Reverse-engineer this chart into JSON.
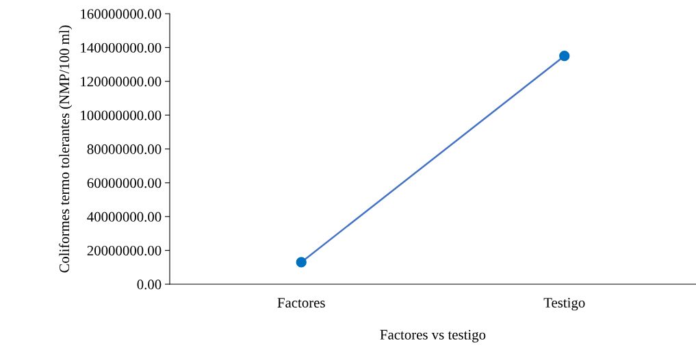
{
  "chart_data": {
    "type": "line",
    "xlabel": "Factores vs testigo",
    "ylabel": "Coliformes termo tolerantes (NMP/100 ml)",
    "categories": [
      "Factores",
      "Testigo"
    ],
    "series": [
      {
        "color": "#4472c4",
        "values": [
          13000000,
          135000000
        ]
      }
    ],
    "ylim": [
      0,
      160000000
    ],
    "yticks": [
      {
        "value": 0,
        "label": "0.00"
      },
      {
        "value": 20000000,
        "label": "20000000.00"
      },
      {
        "value": 40000000,
        "label": "40000000.00"
      },
      {
        "value": 60000000,
        "label": "60000000.00"
      },
      {
        "value": 80000000,
        "label": "80000000.00"
      },
      {
        "value": 100000000,
        "label": "100000000.00"
      },
      {
        "value": 120000000,
        "label": "120000000.00"
      },
      {
        "value": 140000000,
        "label": "140000000.00"
      },
      {
        "value": 160000000,
        "label": "160000000.00"
      }
    ],
    "marker": "circle",
    "line_style": "solid",
    "grid": false,
    "legend": false
  }
}
